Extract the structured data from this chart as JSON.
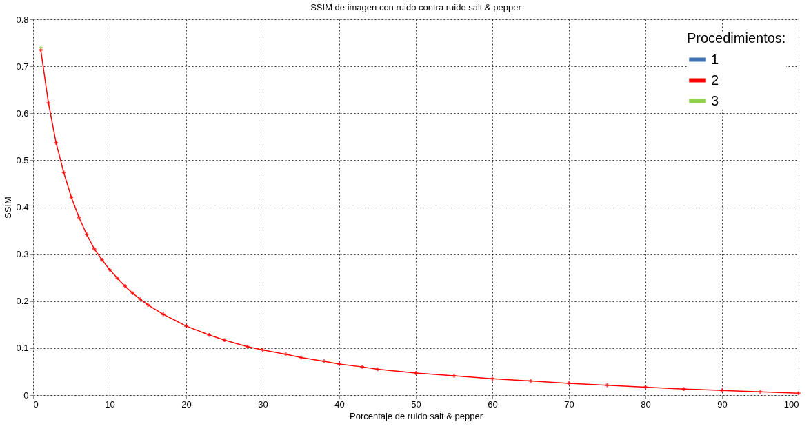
{
  "chart_data": {
    "type": "line",
    "title": "SSIM de imagen con ruido contra ruido salt & pepper",
    "xlabel": "Porcentaje de ruido salt & pepper",
    "ylabel": "SSIM",
    "legend_title": "Procedimientos:",
    "x": [
      1,
      2,
      3,
      4,
      5,
      6,
      7,
      8,
      9,
      10,
      11,
      12,
      13,
      14,
      15,
      17,
      20,
      23,
      25,
      28,
      30,
      33,
      35,
      38,
      40,
      43,
      45,
      50,
      55,
      60,
      65,
      70,
      75,
      80,
      85,
      90,
      95,
      100
    ],
    "series": [
      {
        "name": "1",
        "color": "#3f73b5",
        "values": [
          null,
          null,
          null,
          null,
          null,
          null,
          null,
          null,
          null,
          null,
          null,
          null,
          null,
          null,
          null,
          null,
          null,
          null,
          null,
          null,
          null,
          null,
          null,
          null,
          null,
          null,
          null,
          null,
          null,
          null,
          null,
          null,
          null,
          null,
          null,
          null,
          null,
          null
        ]
      },
      {
        "name": "2",
        "color": "#ff0000",
        "values": [
          0.735,
          0.622,
          0.537,
          0.474,
          0.421,
          0.378,
          0.342,
          0.311,
          0.288,
          0.267,
          0.249,
          0.232,
          0.217,
          0.204,
          0.192,
          0.172,
          0.147,
          0.128,
          0.117,
          0.103,
          0.096,
          0.087,
          0.08,
          0.072,
          0.066,
          0.06,
          0.055,
          0.047,
          0.041,
          0.035,
          0.03,
          0.025,
          0.021,
          0.017,
          0.013,
          0.01,
          0.007,
          0.004
        ]
      },
      {
        "name": "3",
        "color": "#92d050",
        "values": [
          0.74,
          null,
          null,
          null,
          null,
          null,
          null,
          null,
          null,
          null,
          null,
          null,
          null,
          null,
          null,
          null,
          null,
          null,
          null,
          null,
          null,
          null,
          null,
          null,
          null,
          null,
          null,
          null,
          null,
          null,
          null,
          null,
          null,
          null,
          null,
          null,
          null,
          null
        ]
      }
    ],
    "xlim": [
      0,
      100
    ],
    "xticks": [
      0,
      10,
      20,
      30,
      40,
      50,
      60,
      70,
      80,
      90,
      100
    ],
    "ylim": [
      0,
      0.8
    ],
    "yticks": [
      0,
      0.1,
      0.2,
      0.3,
      0.4,
      0.5,
      0.6,
      0.7,
      0.8
    ],
    "grid": true,
    "legend": "top right",
    "marker": "cross",
    "line_style": "solid"
  }
}
